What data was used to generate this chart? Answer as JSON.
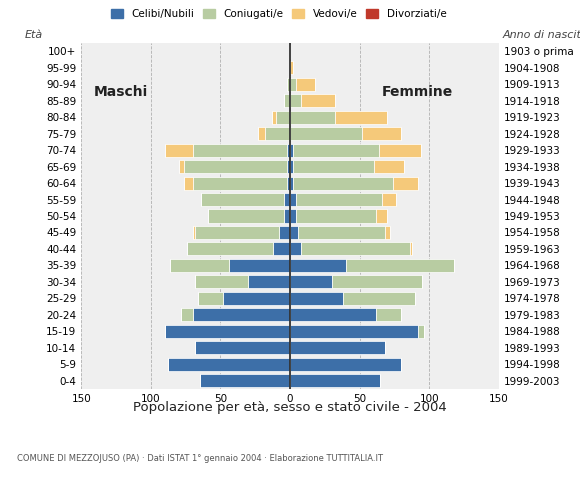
{
  "age_groups": [
    "0-4",
    "5-9",
    "10-14",
    "15-19",
    "20-24",
    "25-29",
    "30-34",
    "35-39",
    "40-44",
    "45-49",
    "50-54",
    "55-59",
    "60-64",
    "65-69",
    "70-74",
    "75-79",
    "80-84",
    "85-89",
    "90-94",
    "95-99",
    "100+"
  ],
  "birth_years": [
    "1999-2003",
    "1994-1998",
    "1989-1993",
    "1984-1988",
    "1979-1983",
    "1974-1978",
    "1969-1973",
    "1964-1968",
    "1959-1963",
    "1954-1958",
    "1949-1953",
    "1944-1948",
    "1939-1943",
    "1934-1938",
    "1929-1933",
    "1924-1928",
    "1919-1923",
    "1914-1918",
    "1909-1913",
    "1904-1908",
    "1903 o prima"
  ],
  "male_celibe": [
    0,
    0,
    0,
    0,
    0,
    0,
    0,
    0,
    0,
    0,
    0,
    0,
    2,
    2,
    4,
    2,
    0,
    0,
    0,
    0,
    0
  ],
  "male_coniugato": [
    0,
    0,
    0,
    0,
    8,
    18,
    38,
    42,
    62,
    60,
    55,
    60,
    68,
    74,
    68,
    18,
    10,
    4,
    2,
    0,
    0
  ],
  "male_vedovo": [
    0,
    0,
    0,
    0,
    0,
    0,
    0,
    0,
    0,
    2,
    0,
    0,
    6,
    4,
    20,
    5,
    3,
    0,
    0,
    0,
    0
  ],
  "male_divorziato": [
    0,
    0,
    0,
    0,
    0,
    0,
    0,
    0,
    0,
    0,
    0,
    0,
    0,
    0,
    0,
    0,
    0,
    0,
    0,
    0,
    0
  ],
  "male_celibe_only": [
    65,
    88,
    68,
    90,
    70,
    48,
    30,
    44,
    12,
    8,
    4,
    4,
    2,
    2,
    2,
    0,
    0,
    0,
    0,
    0,
    0
  ],
  "female_nubile": [
    65,
    80,
    68,
    92,
    62,
    38,
    30,
    40,
    8,
    6,
    4,
    4,
    2,
    2,
    2,
    0,
    0,
    0,
    0,
    0,
    0
  ],
  "female_coniugata": [
    0,
    0,
    0,
    4,
    18,
    52,
    65,
    78,
    78,
    62,
    58,
    62,
    72,
    58,
    62,
    52,
    32,
    8,
    4,
    0,
    0
  ],
  "female_vedova": [
    0,
    0,
    0,
    0,
    0,
    0,
    0,
    0,
    2,
    4,
    8,
    10,
    18,
    22,
    30,
    28,
    38,
    24,
    14,
    2,
    0
  ],
  "female_divorziata": [
    0,
    0,
    0,
    0,
    0,
    0,
    0,
    0,
    0,
    0,
    0,
    0,
    0,
    0,
    0,
    0,
    0,
    0,
    0,
    0,
    0
  ],
  "colors": {
    "celibe_nubile": "#3d6fa8",
    "coniugato_coniugata": "#b8cca2",
    "vedovo_vedova": "#f5c97a",
    "divorziato_divorziata": "#c0392b"
  },
  "title": "Popolazione per età, sesso e stato civile - 2004",
  "subtitle": "COMUNE DI MEZZOJUSO (PA) · Dati ISTAT 1° gennaio 2004 · Elaborazione TUTTITALIA.IT",
  "legend_labels": [
    "Celibi/Nubili",
    "Coniugati/e",
    "Vedovi/e",
    "Divorziati/e"
  ],
  "bg_color": "#ffffff",
  "plot_bg_color": "#efefef",
  "xlim": 150
}
